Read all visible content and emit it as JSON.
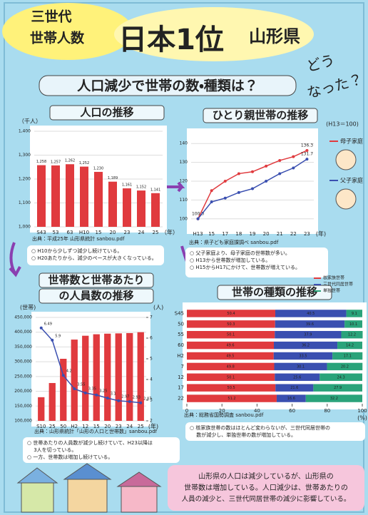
{
  "header": {
    "line1": "三世代",
    "line2": "世帯人数",
    "rank": "日本1位",
    "pref": "山形県",
    "question": [
      "どう",
      "なった？"
    ]
  },
  "headline": "人口減少で世帯の数・種類は？",
  "conclusion": [
    "山形県の人口は減少しているが、山形県の",
    "世帯数は増加している。人口減少は、世帯あたりの",
    "人員の減少と、三世代同居世帯の減少に影響している。"
  ],
  "chart_data": [
    {
      "type": "bar",
      "title": "人口の推移",
      "y_label": "（千人）",
      "x_label": "（年）",
      "categories": [
        "S43",
        "53",
        "63",
        "H10",
        "15",
        "20",
        "23",
        "24",
        "25"
      ],
      "values": [
        1258,
        1257,
        1262,
        1252,
        1230,
        1189,
        1161,
        1152,
        1141
      ],
      "value_labels": [
        "1,258",
        "1,257",
        "1,262",
        "1,252",
        "1,230",
        "1,189",
        "1,161",
        "1,152",
        "1,141"
      ],
      "color": "#e03a3e",
      "ylim": [
        1000,
        1400
      ],
      "yticks": [
        {
          "value": 1000,
          "label": "1,000"
        },
        {
          "value": 1100,
          "label": "1,100"
        },
        {
          "value": 1200,
          "label": "1,200"
        },
        {
          "value": 1300,
          "label": "1,300"
        },
        {
          "value": 1400,
          "label": "1,400"
        }
      ],
      "source": "出典：平成25年 山形県統計 sanbou.pdf",
      "notes": [
        "○ H10から少しずつ減少し続けている。",
        "○ H20あたりから、減少のペースが大きくなっている。"
      ]
    },
    {
      "type": "line",
      "title": "ひとり親世帯の推移",
      "subtitle": "(H13＝100)",
      "x_label": "(年)",
      "categories": [
        "H13",
        "15",
        "17",
        "18",
        "19",
        "20",
        "21",
        "22",
        "23"
      ],
      "series": [
        {
          "name": "母子家庭",
          "color": "#e03a3e",
          "values": [
            100,
            115,
            120,
            124,
            125,
            128,
            131,
            133,
            136.3
          ],
          "value_labels": [
            "100.0",
            null,
            null,
            null,
            null,
            null,
            null,
            null,
            "136.3"
          ]
        },
        {
          "name": "父子家庭",
          "color": "#3a4fb0",
          "values": [
            100,
            109,
            111,
            114,
            116,
            120,
            124,
            127,
            131.7
          ],
          "value_labels": [
            null,
            null,
            null,
            null,
            null,
            null,
            null,
            null,
            "131.7"
          ]
        }
      ],
      "ylim": [
        95,
        145
      ],
      "yticks": [
        100,
        110,
        120,
        130,
        140
      ],
      "legend": "right",
      "source": "出典：県子ども家庭課調べ sanbou.pdf",
      "notes": [
        "○ 父子家庭より、母子家庭の世帯数が多い。",
        "○ H13から世帯数が増加している。",
        "○ H15からH17にかけて、世帯数が増えている。"
      ]
    },
    {
      "type": "bar_line",
      "title": [
        "世帯数と世帯あたり",
        "の人員数の推移"
      ],
      "y_label": "(世帯)",
      "y2_label": "(人)",
      "x_label": "(年)",
      "categories": [
        "S10",
        "25",
        "50",
        "H2",
        "12",
        "15",
        "20",
        "23",
        "24",
        "25"
      ],
      "series": [
        {
          "color": "#e03a3e",
          "values": [
            180000,
            228000,
            310000,
            375000,
            388000,
            393000,
            395000,
            396000,
            397000,
            400000
          ]
        },
        {
          "color": "#3a4fb0",
          "axis": "y2",
          "values": [
            6.49,
            5.9,
            4.2,
            3.55,
            3.35,
            3.25,
            3.1,
            2.97,
            2.93,
            2.87
          ]
        }
      ],
      "ylim": [
        100000,
        450000
      ],
      "yticks": [
        {
          "value": 100000,
          "label": "100,000"
        },
        {
          "value": 150000,
          "label": "150,000"
        },
        {
          "value": 200000,
          "label": "200,000"
        },
        {
          "value": 250000,
          "label": "250,000"
        },
        {
          "value": 300000,
          "label": "300,000"
        },
        {
          "value": 350000,
          "label": "350,000"
        },
        {
          "value": 400000,
          "label": "400,000"
        },
        {
          "value": 450000,
          "label": "450,000"
        }
      ],
      "y2lim": [
        2,
        7
      ],
      "y2ticks": [
        2,
        3,
        4,
        5,
        6,
        7
      ],
      "source": "出典：山形県統計「山形の人口と世帯数」sanbou.pdf",
      "notes": [
        "○ 世帯あたりの人員数が減少し続けていて、H23以降は",
        "　 3人を切っている。",
        "○ 一方、世帯数は増加し続けている。"
      ]
    },
    {
      "type": "stacked_barh",
      "title": "世帯の種類の推移",
      "x_label": "(%)",
      "categories": [
        "S45",
        "50",
        "55",
        "60",
        "H2",
        "7",
        "12",
        "17",
        "22"
      ],
      "series": [
        {
          "name": "核家族世帯",
          "color": "#e03a3e",
          "values": [
            50.4,
            50.3,
            50.1,
            49.6,
            49.5,
            49.8,
            50.1,
            50.5,
            51.2
          ]
        },
        {
          "name": "三世代同居世帯",
          "color": "#3a4fb0",
          "values": [
            40.5,
            39.6,
            37.9,
            36.2,
            33.5,
            30.1,
            25.6,
            21.6,
            16.6
          ]
        },
        {
          "name": "単独世帯",
          "color": "#2aa37a",
          "values": [
            9.1,
            10.1,
            12.2,
            14.2,
            17.1,
            20.2,
            24.3,
            27.9,
            32.2
          ]
        }
      ],
      "xlim": [
        0,
        100
      ],
      "xticks": [
        0,
        20,
        40,
        60,
        80,
        100
      ],
      "legend": "top-right",
      "source": "出典：総務省国勢調査 sanbou.pdf",
      "notes": [
        "○ 核家族世帯の数はほとんど変わらないが、三世代同居世帯の",
        "　 数が減少し、単独世帯の数が増加している。"
      ]
    }
  ]
}
